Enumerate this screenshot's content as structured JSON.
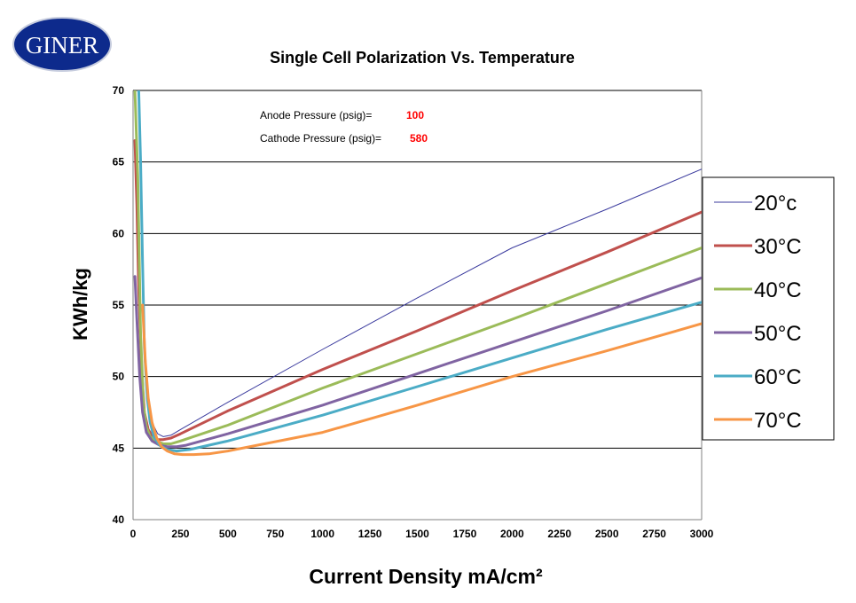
{
  "logo": {
    "text": "GINER"
  },
  "chart_data": {
    "type": "line",
    "title": "Single Cell Polarization Vs. Temperature",
    "xlabel": "Current Density  mA/cm²",
    "ylabel": "KWh/kg",
    "xlim": [
      0,
      3000
    ],
    "ylim": [
      40,
      70
    ],
    "xticks": [
      0,
      250,
      500,
      750,
      1000,
      1250,
      1500,
      1750,
      2000,
      2250,
      2500,
      2750,
      3000
    ],
    "yticks": [
      40,
      45,
      50,
      55,
      60,
      65,
      70
    ],
    "grid": "horizontal",
    "legend": "right",
    "annotations": [
      {
        "label": "Anode Pressure (psig)=",
        "value": "100",
        "color": "#ff0000"
      },
      {
        "label": "Cathode Pressure (psig)=",
        "value": "580",
        "color": "#ff0000"
      }
    ],
    "series": [
      {
        "name": "20°c",
        "color": "#3b3b9e",
        "width": 1,
        "x": [
          30,
          45,
          60,
          80,
          100,
          130,
          160,
          200,
          250,
          500,
          1000,
          1500,
          2000,
          2500,
          3000
        ],
        "y": [
          70,
          60,
          52,
          48.5,
          46.8,
          46.0,
          45.8,
          45.9,
          46.3,
          48.2,
          51.9,
          55.5,
          59.0,
          61.7,
          64.5
        ]
      },
      {
        "name": "30°C",
        "color": "#c0504d",
        "width": 3,
        "x": [
          10,
          20,
          30,
          45,
          60,
          80,
          100,
          130,
          160,
          200,
          250,
          500,
          1000,
          1500,
          2000,
          2500,
          3000
        ],
        "y": [
          66.5,
          62,
          56,
          50.5,
          47.5,
          46.3,
          45.9,
          45.6,
          45.6,
          45.7,
          46.0,
          47.6,
          50.5,
          53.2,
          56.0,
          58.7,
          61.5
        ]
      },
      {
        "name": "40°C",
        "color": "#9bbb59",
        "width": 3,
        "x": [
          10,
          25,
          40,
          55,
          70,
          90,
          120,
          160,
          200,
          250,
          500,
          1000,
          1500,
          2000,
          2500,
          3000
        ],
        "y": [
          70,
          64,
          53,
          48,
          46.5,
          45.8,
          45.5,
          45.3,
          45.3,
          45.5,
          46.6,
          49.2,
          51.6,
          54.0,
          56.5,
          59.0
        ]
      },
      {
        "name": "50°C",
        "color": "#8064a2",
        "width": 3,
        "x": [
          10,
          20,
          35,
          50,
          70,
          100,
          140,
          180,
          230,
          280,
          500,
          1000,
          1500,
          2000,
          2500,
          3000
        ],
        "y": [
          57,
          54,
          50,
          47.5,
          46.1,
          45.5,
          45.2,
          45.1,
          45.1,
          45.2,
          46.0,
          48.0,
          50.2,
          52.4,
          54.6,
          56.9
        ]
      },
      {
        "name": "60°C",
        "color": "#4bacc6",
        "width": 3,
        "x": [
          30,
          40,
          50,
          60,
          75,
          90,
          110,
          140,
          180,
          230,
          300,
          500,
          1000,
          1500,
          2000,
          2500,
          3000
        ],
        "y": [
          70,
          65,
          58,
          52,
          48.5,
          46.8,
          45.8,
          45.2,
          44.9,
          44.8,
          44.9,
          45.5,
          47.3,
          49.3,
          51.3,
          53.3,
          55.2
        ]
      },
      {
        "name": "70°C",
        "color": "#f79646",
        "width": 3,
        "x": [
          50,
          65,
          80,
          100,
          125,
          150,
          180,
          220,
          260,
          320,
          400,
          500,
          1000,
          1500,
          2000,
          2500,
          3000
        ],
        "y": [
          55,
          51,
          48.5,
          46.8,
          45.7,
          45.1,
          44.8,
          44.6,
          44.55,
          44.55,
          44.6,
          44.8,
          46.1,
          48.0,
          50.0,
          51.8,
          53.7
        ]
      }
    ]
  }
}
